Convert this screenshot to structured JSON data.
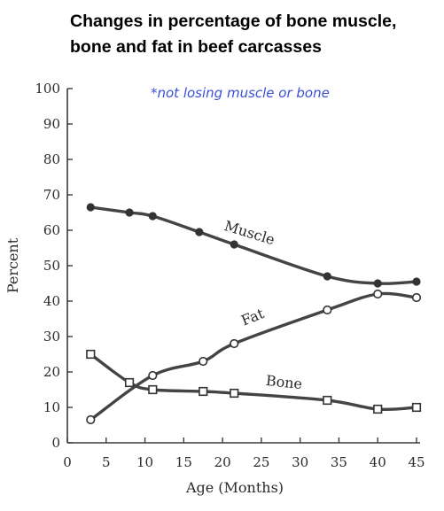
{
  "title_lines": [
    "Changes in percentage of bone muscle,",
    "bone and fat in beef carcasses"
  ],
  "annotation": "*not losing muscle or bone",
  "chart_data": {
    "type": "line",
    "title": "Changes in percentage of bone muscle, bone and fat in beef carcasses",
    "xlabel": "Age (Months)",
    "ylabel": "Percent",
    "xlim": [
      0,
      45
    ],
    "ylim": [
      0,
      100
    ],
    "x_ticks": [
      0,
      5,
      10,
      15,
      20,
      25,
      30,
      35,
      40,
      45
    ],
    "y_ticks": [
      0,
      10,
      20,
      30,
      40,
      50,
      60,
      70,
      80,
      90,
      100
    ],
    "grid": false,
    "series": [
      {
        "name": "Muscle",
        "marker": "filled-circle",
        "x": [
          3,
          8,
          11,
          17,
          21.5,
          33.5,
          40,
          45
        ],
        "y": [
          66.5,
          65,
          64,
          59.5,
          56,
          47,
          45,
          45.5
        ]
      },
      {
        "name": "Fat",
        "marker": "open-circle",
        "x": [
          3,
          11,
          17.5,
          21.5,
          33.5,
          40,
          45
        ],
        "y": [
          6.5,
          19,
          23,
          28,
          37.5,
          42,
          41
        ]
      },
      {
        "name": "Bone",
        "marker": "open-square",
        "x": [
          3,
          8,
          11,
          17.5,
          21.5,
          33.5,
          40,
          45
        ],
        "y": [
          25,
          17,
          15,
          14.5,
          14,
          12,
          9.5,
          10
        ]
      }
    ]
  }
}
